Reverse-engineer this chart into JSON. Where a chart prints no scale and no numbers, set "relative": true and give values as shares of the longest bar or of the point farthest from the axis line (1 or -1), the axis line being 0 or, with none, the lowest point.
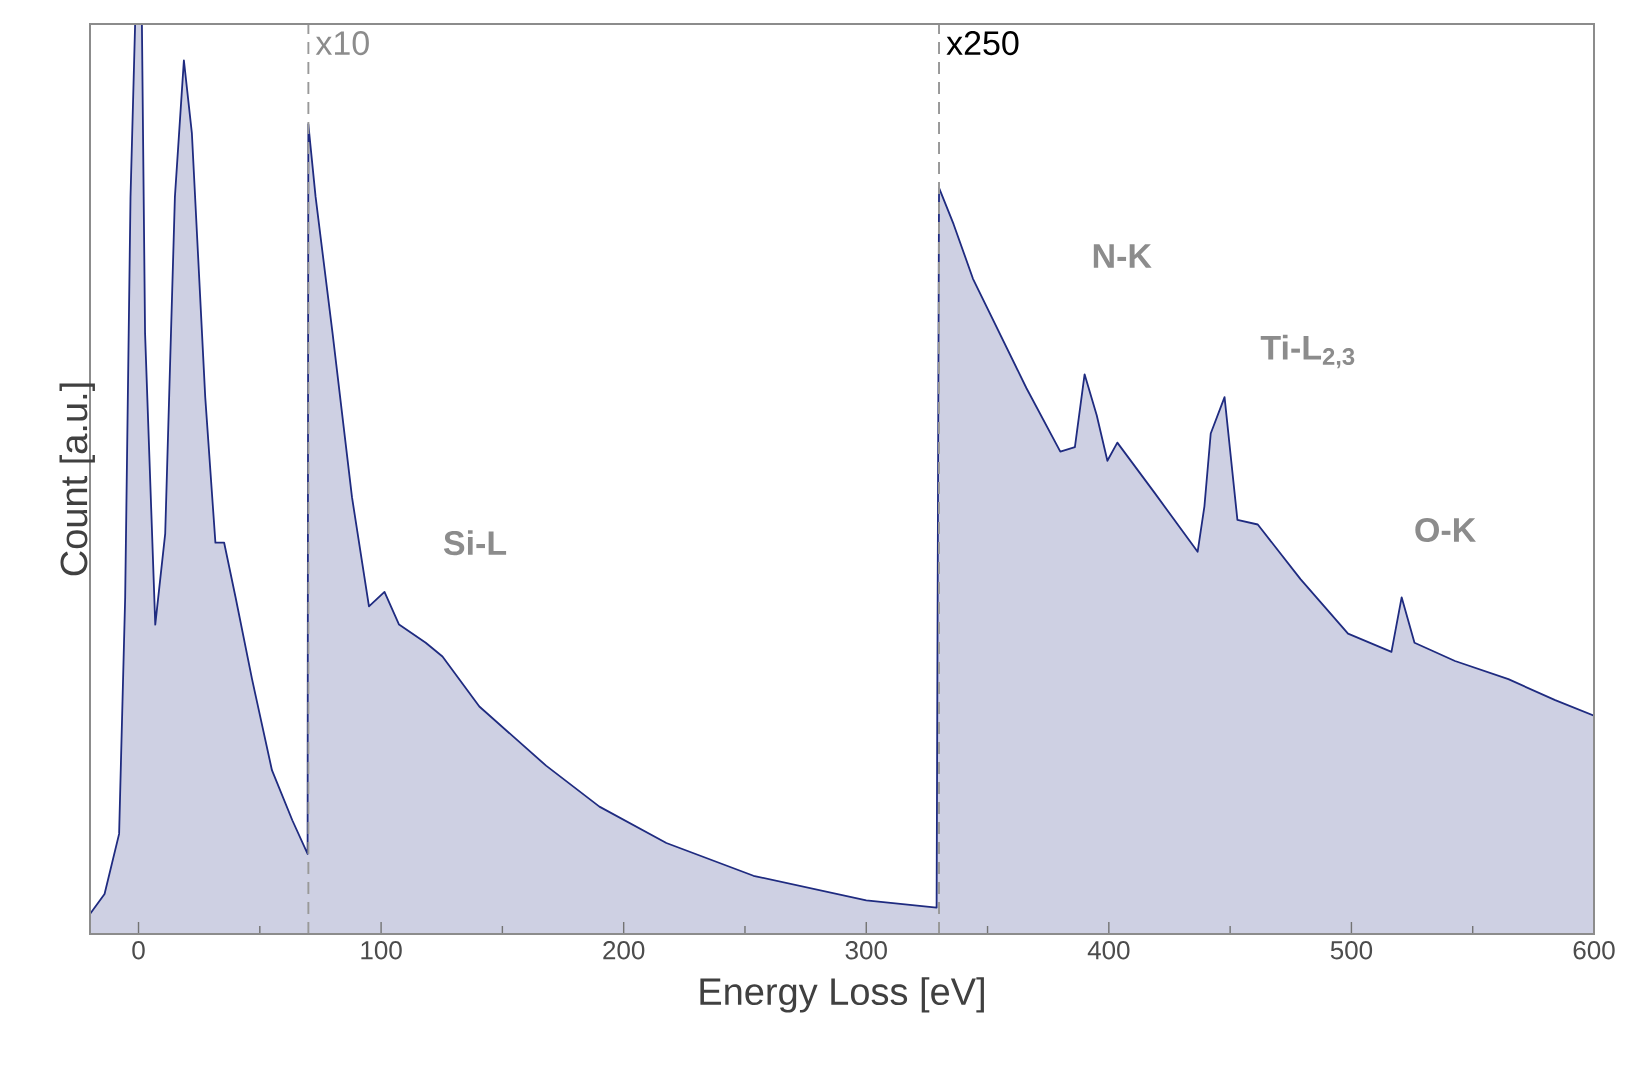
{
  "chart_data": {
    "type": "area",
    "relative": true,
    "xlabel": "Energy Loss [eV]",
    "ylabel": "Count [a.u.]",
    "xlim": [
      -20,
      600
    ],
    "xticks": [
      0,
      {
        "value": 50,
        "label": null
      },
      100,
      {
        "value": 150,
        "label": null
      },
      200,
      {
        "value": 250,
        "label": null
      },
      300,
      {
        "value": 350,
        "label": null
      },
      400,
      {
        "value": 450,
        "label": null
      },
      500,
      {
        "value": 550,
        "label": null
      },
      600
    ],
    "tick_labels": "x",
    "grid": false,
    "series": [
      {
        "color": "#1f2b80",
        "x": [
          -20,
          -14,
          -8,
          -5.5,
          -3.3,
          -1.4,
          1.4,
          2.7,
          6.9,
          11,
          15,
          18.7,
          22,
          27.5,
          31.7,
          35.3,
          40,
          46.8,
          55,
          63.4,
          69.7,
          70,
          73,
          80,
          88,
          95,
          101.4,
          107.4,
          118.4,
          125.3,
          140.5,
          168,
          190,
          217.6,
          253.5,
          300,
          329,
          330,
          336,
          344,
          355,
          366,
          380,
          386,
          390,
          395,
          399.4,
          403.5,
          418.8,
          436.6,
          439.4,
          442,
          447.7,
          453,
          461.4,
          479,
          498.6,
          516.5,
          520.7,
          526,
          542.7,
          564.7,
          584,
          600
        ],
        "values": [
          0.022,
          0.044,
          0.11,
          0.37,
          0.81,
          1.0,
          1.0,
          0.66,
          0.34,
          0.44,
          0.81,
          0.96,
          0.88,
          0.59,
          0.43,
          0.43,
          0.37,
          0.28,
          0.18,
          0.125,
          0.088,
          0.89,
          0.81,
          0.66,
          0.48,
          0.36,
          0.376,
          0.34,
          0.32,
          0.305,
          0.25,
          0.185,
          0.14,
          0.1,
          0.064,
          0.037,
          0.029,
          0.82,
          0.78,
          0.72,
          0.66,
          0.6,
          0.53,
          0.535,
          0.615,
          0.57,
          0.52,
          0.54,
          0.485,
          0.42,
          0.47,
          0.55,
          0.59,
          0.455,
          0.45,
          0.39,
          0.33,
          0.31,
          0.37,
          0.32,
          0.3,
          0.28,
          0.257,
          0.24
        ]
      }
    ],
    "ref_lines": [
      {
        "axis": "x",
        "value": 70,
        "label": "x10",
        "color": "#999999",
        "line_style": "dashed"
      },
      {
        "axis": "x",
        "value": 330,
        "label": "x250",
        "color": "#999999",
        "line_style": "dashed"
      }
    ],
    "annotations": [
      "Si-L",
      "N-K",
      "Ti-L$_{2,3}$",
      "O-K"
    ]
  }
}
